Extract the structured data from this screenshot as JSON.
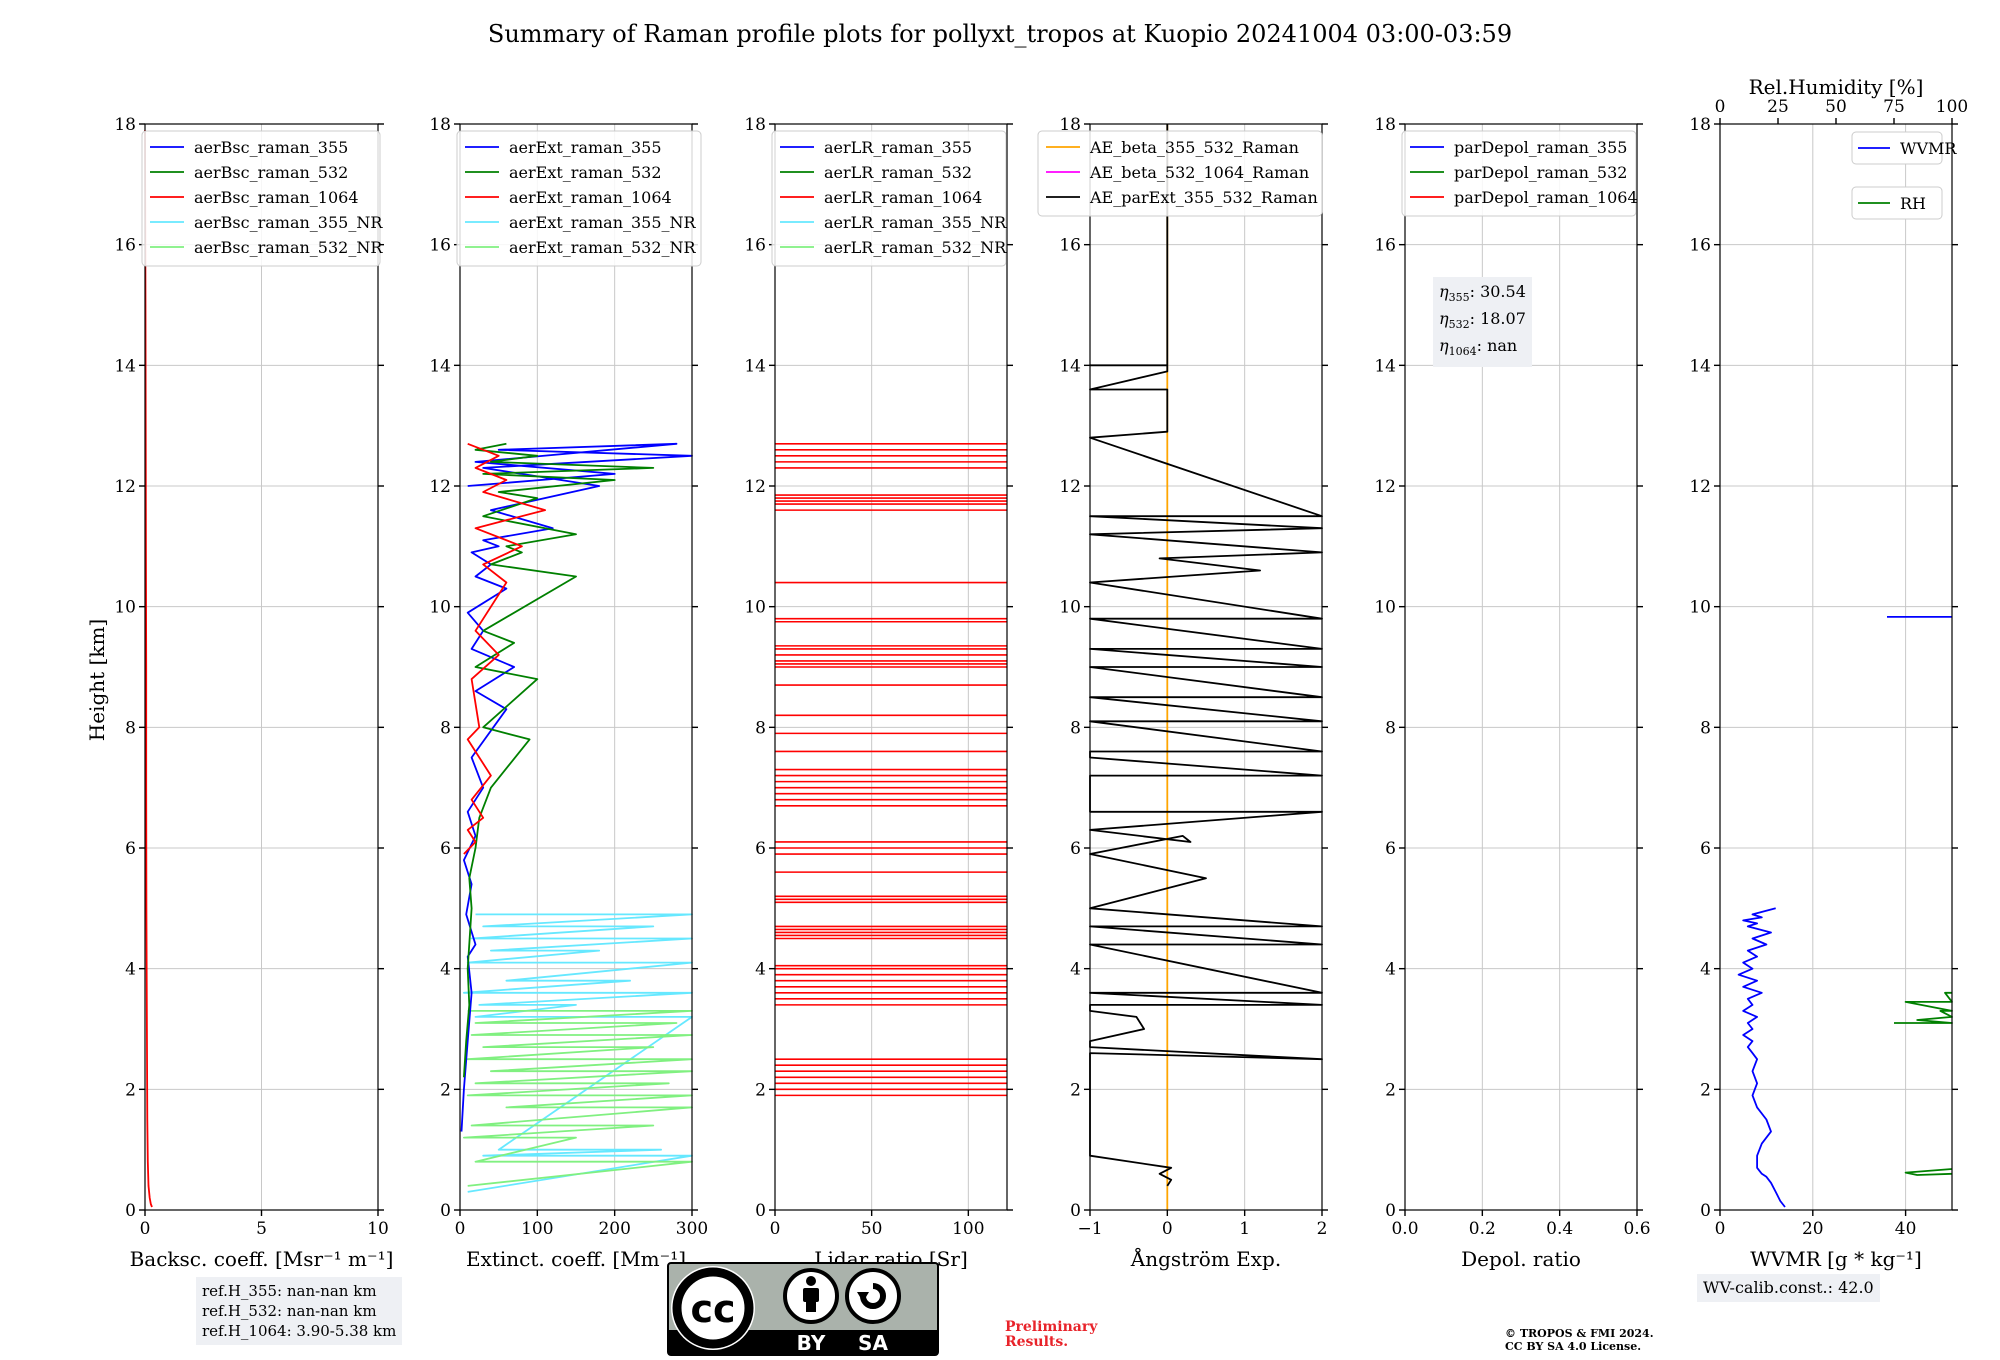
{
  "title": "Summary of Raman profile plots for pollyxt_tropos at Kuopio 20241004 03:00-03:59",
  "height_label": "Height [km]",
  "colors": {
    "blue": "#0000ff",
    "green": "#008000",
    "red": "#ff0000",
    "cyan": "#66e8ff",
    "lightgreen": "#80f080",
    "orange": "#ffa500",
    "magenta": "#ff00ff",
    "black": "#000000"
  },
  "chart_data": [
    {
      "type": "line",
      "xlabel": "Backsc. coeff. [Msr⁻¹ m⁻¹]",
      "ylabel": "Height [km]",
      "xlim": [
        0,
        10
      ],
      "ylim": [
        0,
        18
      ],
      "xticks": [
        "0",
        "5",
        "10"
      ],
      "yticks": [
        "0",
        "2",
        "4",
        "6",
        "8",
        "10",
        "12",
        "14",
        "16",
        "18"
      ],
      "grid": true,
      "legend": [
        "aerBsc_raman_355",
        "aerBsc_raman_532",
        "aerBsc_raman_1064",
        "aerBsc_raman_355_NR",
        "aerBsc_raman_532_NR"
      ],
      "legend_colors": [
        "blue",
        "green",
        "red",
        "cyan",
        "lightgreen"
      ],
      "series": [
        {
          "name": "aerBsc_raman_1064",
          "color": "red",
          "x": [
            0.3,
            0.25,
            0.2,
            0.15,
            0.12,
            0.1,
            0.08,
            0.06,
            0.05,
            0.05,
            0.04,
            0.03,
            0.02,
            0.0
          ],
          "y": [
            0.05,
            0.1,
            0.2,
            0.4,
            0.8,
            1.5,
            3,
            5,
            7,
            9,
            11,
            13,
            15,
            17.9
          ]
        }
      ],
      "annotation_box": [
        "ref.H_355: nan-nan km",
        "ref.H_532: nan-nan km",
        "ref.H_1064: 3.90-5.38 km"
      ]
    },
    {
      "type": "line",
      "xlabel": "Extinct. coeff. [Mm⁻¹]",
      "xlim": [
        0,
        300
      ],
      "ylim": [
        0,
        18
      ],
      "xticks": [
        "0",
        "100",
        "200",
        "300"
      ],
      "yticks": [
        "0",
        "2",
        "4",
        "6",
        "8",
        "10",
        "12",
        "14",
        "16",
        "18"
      ],
      "grid": true,
      "legend": [
        "aerExt_raman_355",
        "aerExt_raman_532",
        "aerExt_raman_1064",
        "aerExt_raman_355_NR",
        "aerExt_raman_532_NR"
      ],
      "legend_colors": [
        "blue",
        "green",
        "red",
        "cyan",
        "lightgreen"
      ],
      "series": [
        {
          "name": "aerExt_raman_355_NR",
          "color": "cyan",
          "x": [
            20,
            300,
            30,
            250,
            15,
            300,
            40,
            180,
            10,
            300,
            60,
            220,
            5,
            300,
            25,
            150,
            20,
            300,
            50,
            260,
            30,
            300,
            10
          ],
          "y": [
            4.9,
            4.9,
            4.7,
            4.7,
            4.5,
            4.5,
            4.3,
            4.3,
            4.1,
            4.1,
            3.8,
            3.8,
            3.6,
            3.6,
            3.4,
            3.4,
            3.2,
            3.2,
            1.0,
            1.0,
            0.9,
            0.9,
            0.3
          ]
        },
        {
          "name": "aerExt_raman_532_NR",
          "color": "lightgreen",
          "x": [
            10,
            300,
            20,
            280,
            15,
            300,
            30,
            250,
            10,
            300,
            40,
            300,
            20,
            270,
            10,
            300,
            60,
            300,
            15,
            250,
            5,
            150,
            20,
            300,
            10
          ],
          "y": [
            3.3,
            3.3,
            3.1,
            3.1,
            2.9,
            2.9,
            2.7,
            2.7,
            2.5,
            2.5,
            2.3,
            2.3,
            2.1,
            2.1,
            1.9,
            1.9,
            1.7,
            1.7,
            1.4,
            1.4,
            1.2,
            1.2,
            0.8,
            0.8,
            0.4
          ]
        },
        {
          "name": "aerExt_raman_355",
          "color": "blue",
          "x": [
            2,
            5,
            10,
            15,
            10,
            20,
            8,
            15,
            5,
            20,
            10,
            30,
            15,
            60,
            20,
            70,
            15,
            30,
            10,
            60,
            20,
            40,
            15,
            50,
            30,
            120,
            40,
            180,
            30,
            300,
            50,
            280,
            20,
            200,
            10
          ],
          "y": [
            1.3,
            2.0,
            2.8,
            3.6,
            4.2,
            4.4,
            4.9,
            5.4,
            5.8,
            6.2,
            6.6,
            7.0,
            7.5,
            8.3,
            8.6,
            9.0,
            9.3,
            9.6,
            9.9,
            10.3,
            10.5,
            10.7,
            10.9,
            11.0,
            11.1,
            11.3,
            11.6,
            12.0,
            12.3,
            12.5,
            12.6,
            12.7,
            12.4,
            12.2,
            12.0
          ]
        },
        {
          "name": "aerExt_raman_532",
          "color": "green",
          "x": [
            5,
            8,
            12,
            10,
            15,
            12,
            20,
            25,
            40,
            90,
            30,
            100,
            20,
            70,
            30,
            150,
            40,
            80,
            60,
            150,
            30,
            100,
            50,
            200,
            30,
            250,
            40,
            100,
            20,
            60
          ],
          "y": [
            2.2,
            2.8,
            3.4,
            4.0,
            5.0,
            5.5,
            6.0,
            6.5,
            7.0,
            7.8,
            8.0,
            8.8,
            9.0,
            9.4,
            9.6,
            10.5,
            10.7,
            10.9,
            11.0,
            11.2,
            11.5,
            11.8,
            11.9,
            12.1,
            12.2,
            12.3,
            12.4,
            12.5,
            12.6,
            12.7
          ]
        },
        {
          "name": "aerExt_raman_1064",
          "color": "red",
          "x": [
            5,
            20,
            10,
            30,
            15,
            40,
            10,
            25,
            15,
            50,
            20,
            60,
            30,
            80,
            20,
            110,
            30,
            60,
            20,
            50,
            10
          ],
          "y": [
            5.9,
            6.1,
            6.3,
            6.5,
            6.8,
            7.2,
            7.8,
            8.0,
            8.8,
            9.2,
            9.6,
            10.4,
            10.7,
            11.0,
            11.3,
            11.6,
            11.9,
            12.1,
            12.3,
            12.5,
            12.7
          ]
        }
      ]
    },
    {
      "type": "line",
      "xlabel": "Lidar ratio [Sr]",
      "xlim": [
        0,
        120
      ],
      "ylim": [
        0,
        18
      ],
      "xticks": [
        "0",
        "50",
        "100"
      ],
      "yticks": [
        "0",
        "2",
        "4",
        "6",
        "8",
        "10",
        "12",
        "14",
        "16",
        "18"
      ],
      "grid": true,
      "legend": [
        "aerLR_raman_355",
        "aerLR_raman_532",
        "aerLR_raman_1064",
        "aerLR_raman_355_NR",
        "aerLR_raman_532_NR"
      ],
      "legend_colors": [
        "blue",
        "green",
        "red",
        "cyan",
        "lightgreen"
      ],
      "series": [
        {
          "name": "aerLR_raman_1064",
          "color": "red",
          "type": "hlines",
          "y": [
            1.9,
            2.0,
            2.1,
            2.2,
            2.3,
            2.4,
            2.5,
            3.4,
            3.5,
            3.6,
            3.7,
            3.8,
            3.9,
            4.0,
            4.05,
            4.5,
            4.55,
            4.6,
            4.65,
            4.7,
            5.1,
            5.15,
            5.2,
            5.6,
            5.9,
            6.0,
            6.1,
            6.7,
            6.8,
            6.9,
            7.0,
            7.1,
            7.2,
            7.3,
            7.6,
            7.9,
            8.2,
            8.7,
            9.0,
            9.05,
            9.1,
            9.2,
            9.3,
            9.35,
            9.75,
            9.8,
            10.4,
            11.6,
            11.7,
            11.75,
            11.8,
            11.85,
            12.3,
            12.4,
            12.5,
            12.6,
            12.7
          ]
        }
      ]
    },
    {
      "type": "line",
      "xlabel": "Ångström Exp.",
      "xlim": [
        -1,
        2
      ],
      "ylim": [
        0,
        18
      ],
      "xticks": [
        "−1",
        "0",
        "1",
        "2"
      ],
      "yticks": [
        "0",
        "2",
        "4",
        "6",
        "8",
        "10",
        "12",
        "14",
        "16",
        "18"
      ],
      "grid": true,
      "legend": [
        "AE_beta_355_532_Raman",
        "AE_beta_532_1064_Raman",
        "AE_parExt_355_532_Raman"
      ],
      "legend_colors": [
        "orange",
        "magenta",
        "black"
      ],
      "series": [
        {
          "name": "AE_beta_355_532_Raman",
          "color": "orange",
          "x": [
            0,
            0
          ],
          "y": [
            0,
            18
          ]
        },
        {
          "name": "AE_parExt_355_532_Raman",
          "color": "black",
          "x": [
            0.0,
            0.05,
            -0.1,
            0.05,
            -1,
            -1,
            2,
            -1,
            -1,
            -0.3,
            -0.4,
            -1,
            -1,
            2,
            -1,
            2,
            -1,
            2,
            -1,
            2,
            -1,
            0.5,
            -1,
            0.2,
            0.3,
            -1,
            2,
            -1,
            -1,
            2,
            -1,
            -1,
            2,
            -1,
            2,
            -1,
            2,
            -1,
            2,
            -1,
            2,
            -1,
            2,
            -1,
            1.2,
            -0.1,
            2,
            -1,
            2,
            -1,
            2,
            -1,
            0,
            0,
            -1,
            0,
            0,
            -1,
            0,
            0,
            0
          ],
          "y": [
            0.4,
            0.5,
            0.6,
            0.7,
            0.9,
            2.6,
            2.5,
            2.7,
            2.8,
            3.0,
            3.2,
            3.3,
            3.4,
            3.4,
            3.6,
            3.6,
            4.4,
            4.4,
            4.7,
            4.7,
            5.0,
            5.5,
            5.9,
            6.2,
            6.1,
            6.3,
            6.6,
            6.6,
            7.2,
            7.2,
            7.5,
            7.6,
            7.6,
            8.1,
            8.1,
            8.5,
            8.5,
            9.0,
            9.0,
            9.3,
            9.3,
            9.8,
            9.8,
            10.4,
            10.6,
            10.8,
            10.9,
            11.2,
            11.3,
            11.5,
            11.5,
            12.8,
            12.9,
            13.6,
            13.6,
            13.9,
            14.0,
            14.0,
            14.0,
            17.9,
            18.0
          ]
        }
      ],
      "note": "x rendered inside [-1, 2] for visible segment shape"
    },
    {
      "type": "line",
      "xlabel": "Depol. ratio",
      "xlim": [
        0,
        0.6
      ],
      "ylim": [
        0,
        18
      ],
      "xticks": [
        "0.0",
        "0.2",
        "0.4",
        "0.6"
      ],
      "yticks": [
        "0",
        "2",
        "4",
        "6",
        "8",
        "10",
        "12",
        "14",
        "16",
        "18"
      ],
      "grid": true,
      "legend": [
        "parDepol_raman_355",
        "parDepol_raman_532",
        "parDepol_raman_1064"
      ],
      "legend_colors": [
        "blue",
        "green",
        "red"
      ],
      "series": [],
      "annotation_box": [
        {
          "sym": "η",
          "sub": "355",
          "val": ": 30.54"
        },
        {
          "sym": "η",
          "sub": "532",
          "val": ": 18.07"
        },
        {
          "sym": "η",
          "sub": "1064",
          "val": ": nan"
        }
      ]
    },
    {
      "type": "line",
      "xlabel": "WVMR [g * kg⁻¹]",
      "top_xlabel": "Rel.Humidity [%]",
      "xlim": [
        0,
        50
      ],
      "top_xlim": [
        0,
        100
      ],
      "ylim": [
        0,
        18
      ],
      "xticks": [
        "0",
        "20",
        "40"
      ],
      "top_xticks": [
        "0",
        "25",
        "50",
        "75",
        "100"
      ],
      "yticks": [
        "0",
        "2",
        "4",
        "6",
        "8",
        "10",
        "12",
        "14",
        "16",
        "18"
      ],
      "grid": true,
      "legend": [
        "WVMR",
        "RH"
      ],
      "legend_colors": [
        "blue",
        "green"
      ],
      "series": [
        {
          "name": "WVMR",
          "color": "blue",
          "x": [
            14,
            13,
            12,
            11,
            10,
            9,
            8,
            8,
            9,
            10,
            11,
            10,
            8,
            7,
            8,
            7,
            8,
            7,
            6,
            7,
            5,
            7,
            6,
            8,
            5,
            7,
            6,
            9,
            5,
            8,
            4,
            7,
            5,
            8,
            6,
            10,
            7,
            11,
            6,
            8,
            5,
            9,
            7,
            12
          ],
          "y": [
            0.05,
            0.15,
            0.3,
            0.45,
            0.55,
            0.6,
            0.7,
            0.9,
            1.1,
            1.2,
            1.3,
            1.5,
            1.7,
            1.9,
            2.1,
            2.3,
            2.5,
            2.6,
            2.7,
            2.8,
            2.9,
            3.0,
            3.1,
            3.2,
            3.3,
            3.4,
            3.5,
            3.6,
            3.7,
            3.8,
            3.9,
            4.0,
            4.1,
            4.2,
            4.3,
            4.4,
            4.5,
            4.6,
            4.7,
            4.75,
            4.8,
            4.85,
            4.9,
            5.0
          ]
        },
        {
          "name": "WVMR",
          "color": "blue",
          "x": [
            36,
            50
          ],
          "y": [
            9.83,
            9.83
          ]
        },
        {
          "name": "RH",
          "color": "green",
          "axis": "top",
          "x": [
            100,
            80,
            85,
            100
          ],
          "y": [
            0.68,
            0.62,
            0.58,
            0.6
          ]
        },
        {
          "name": "RH",
          "color": "green",
          "axis": "top",
          "x": [
            75,
            100,
            85,
            100,
            95,
            100,
            80,
            100,
            97,
            100
          ],
          "y": [
            3.1,
            3.1,
            3.15,
            3.2,
            3.3,
            3.3,
            3.45,
            3.45,
            3.6,
            3.6
          ]
        }
      ],
      "annotation_box": [
        "WV-calib.const.: 42.0"
      ]
    }
  ],
  "footer": {
    "preliminary": [
      "Preliminary",
      "Results."
    ],
    "copyright": [
      "© TROPOS & FMI 2024.",
      "CC BY SA 4.0 License."
    ],
    "cc_logo": {
      "cc": "cc",
      "by": "BY",
      "sa": "SA"
    }
  }
}
